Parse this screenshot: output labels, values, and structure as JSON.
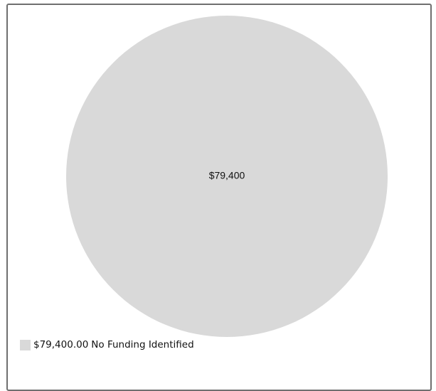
{
  "chart_data": {
    "type": "pie",
    "title": "",
    "slices": [
      {
        "label": "No Funding Identified",
        "value": 79400,
        "display_label": "$79,400",
        "legend_value": "$79,400.00",
        "color": "#d9d9d9"
      }
    ],
    "legend_position": "bottom-left"
  }
}
